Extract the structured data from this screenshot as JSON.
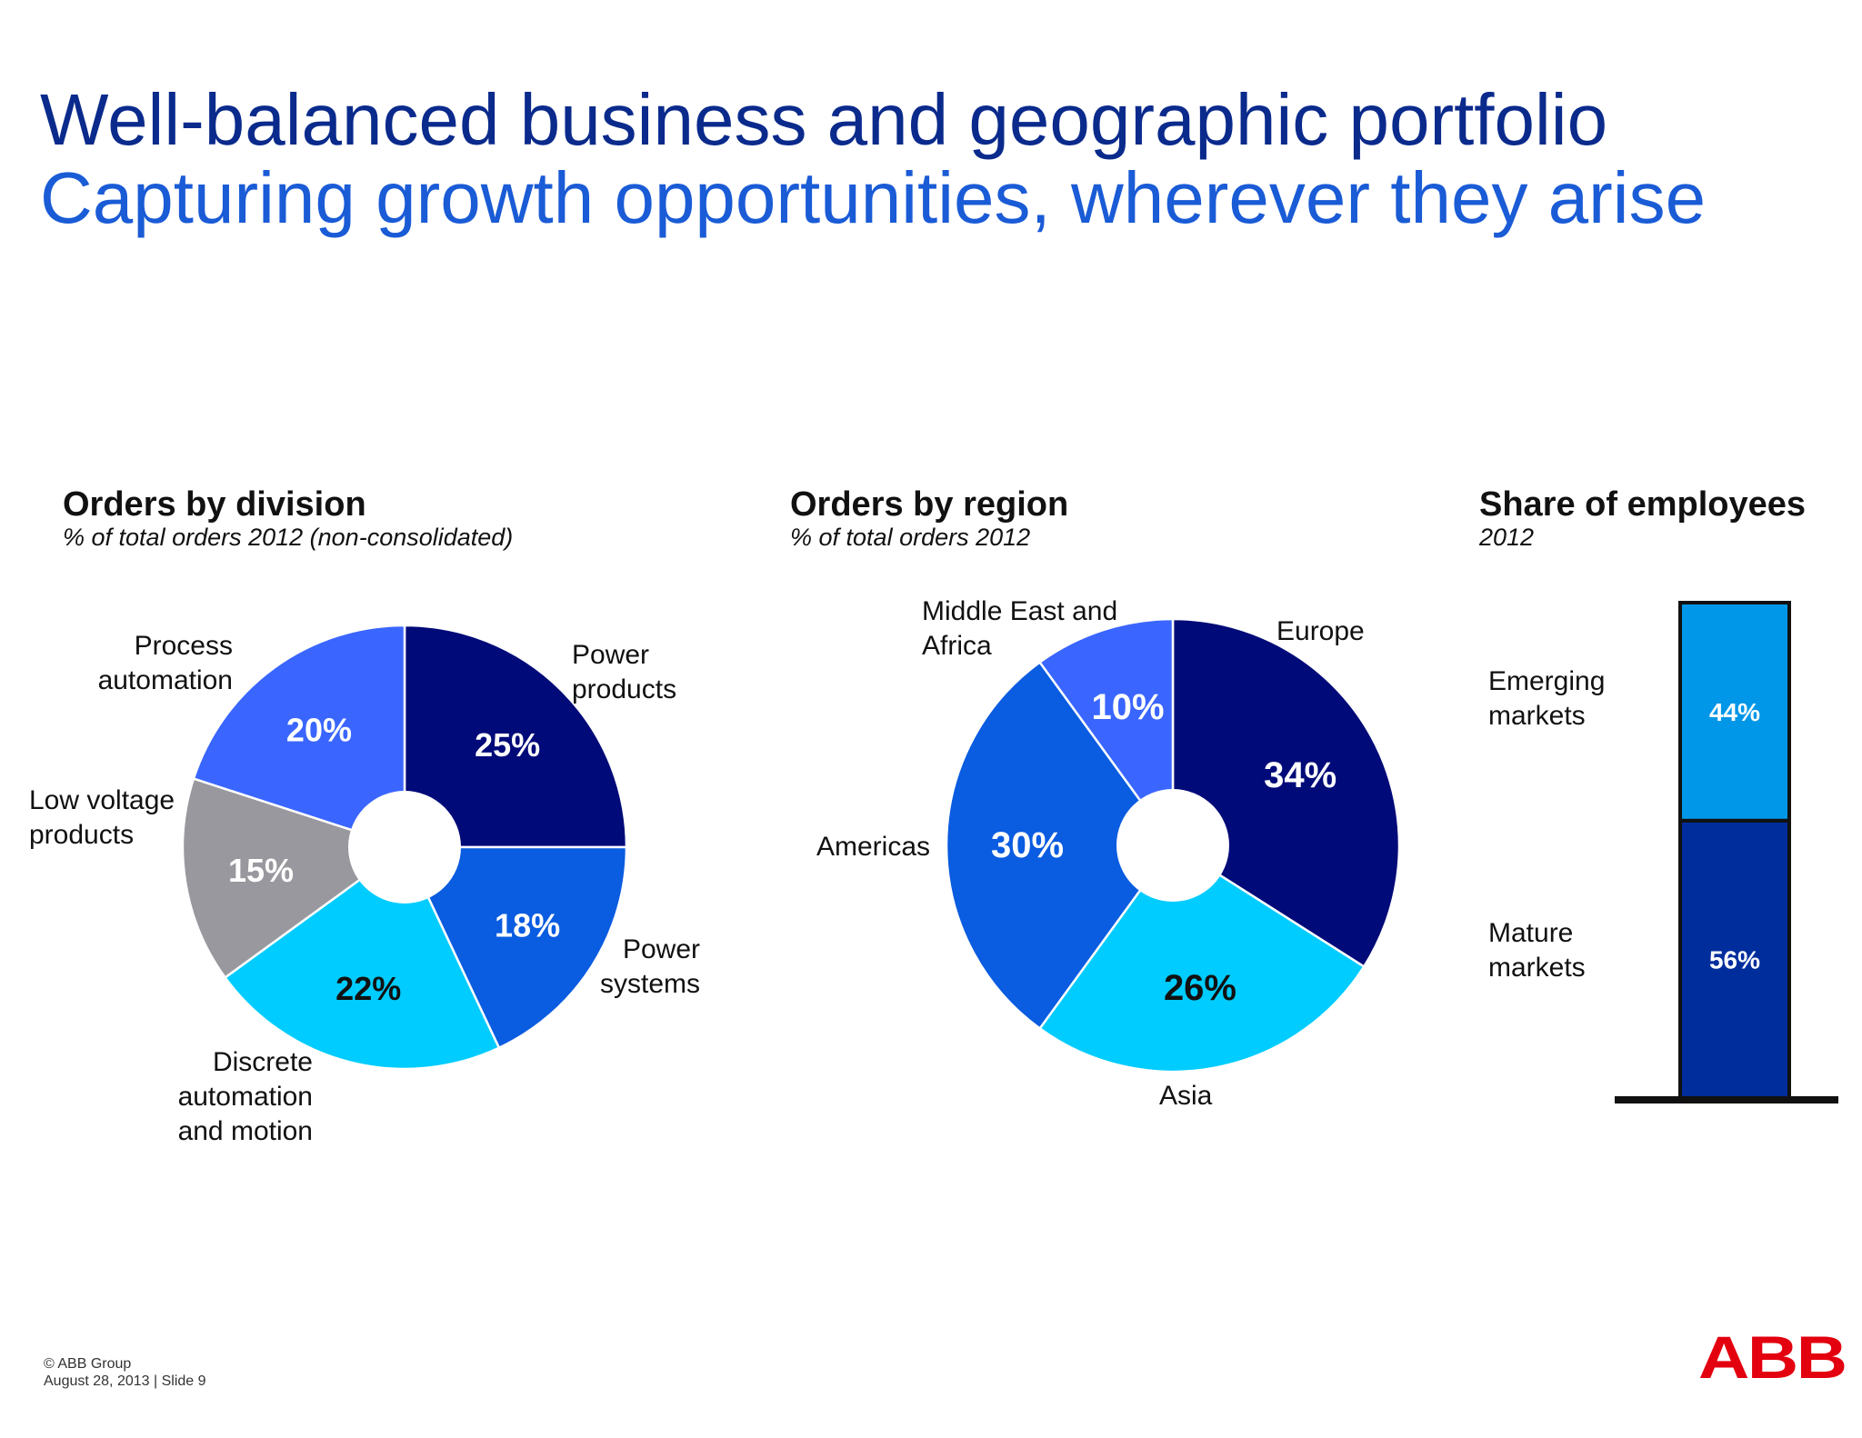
{
  "title": "Well-balanced business and geographic portfolio",
  "subtitle": "Capturing growth opportunities, wherever they arise",
  "colors": {
    "title": "#0a2a8c",
    "subtitle": "#1a5bd6"
  },
  "chart_data": [
    {
      "type": "pie",
      "title": "Orders by division",
      "subtitle": "% of total orders 2012 (non-consolidated)",
      "categories": [
        "Power products",
        "Power systems",
        "Discrete automation and motion",
        "Low voltage products",
        "Process automation"
      ],
      "category_lines": [
        [
          "Power",
          "products"
        ],
        [
          "Power",
          "systems"
        ],
        [
          "Discrete",
          "automation",
          "and motion"
        ],
        [
          "Low voltage",
          "products"
        ],
        [
          "Process",
          "automation"
        ]
      ],
      "values": [
        25,
        18,
        22,
        15,
        20
      ],
      "value_labels": [
        "25%",
        "18%",
        "22%",
        "15%",
        "20%"
      ],
      "colors": [
        "#000a78",
        "#0a5ce0",
        "#00ccff",
        "#98989e",
        "#3a66ff"
      ],
      "label_colors": [
        "#ffffff",
        "#ffffff",
        "#111111",
        "#ffffff",
        "#ffffff"
      ],
      "donut": true
    },
    {
      "type": "pie",
      "title": "Orders by region",
      "subtitle": "% of total orders 2012",
      "categories": [
        "Europe",
        "Asia",
        "Americas",
        "Middle East and Africa"
      ],
      "category_lines": [
        [
          "Europe"
        ],
        [
          "Asia"
        ],
        [
          "Americas"
        ],
        [
          "Middle East and",
          "Africa"
        ]
      ],
      "values": [
        34,
        26,
        30,
        10
      ],
      "value_labels": [
        "34%",
        "26%",
        "30%",
        "10%"
      ],
      "colors": [
        "#000a78",
        "#00ccff",
        "#0a5ce0",
        "#3a66ff"
      ],
      "label_colors": [
        "#ffffff",
        "#111111",
        "#ffffff",
        "#ffffff"
      ],
      "donut": true
    },
    {
      "type": "bar",
      "stacked": true,
      "title": "Share of employees",
      "subtitle": "2012",
      "series": [
        {
          "name": "Mature markets",
          "name_lines": [
            "Mature",
            "markets"
          ],
          "value": 56,
          "label": "56%",
          "color": "#002d9c"
        },
        {
          "name": "Emerging markets",
          "name_lines": [
            "Emerging",
            "markets"
          ],
          "value": 44,
          "label": "44%",
          "color": "#0097e8"
        }
      ]
    }
  ],
  "footer": {
    "copyright": "© ABB Group",
    "date_slide": "August 28, 2013 | Slide 9"
  },
  "logo_text": "ABB"
}
